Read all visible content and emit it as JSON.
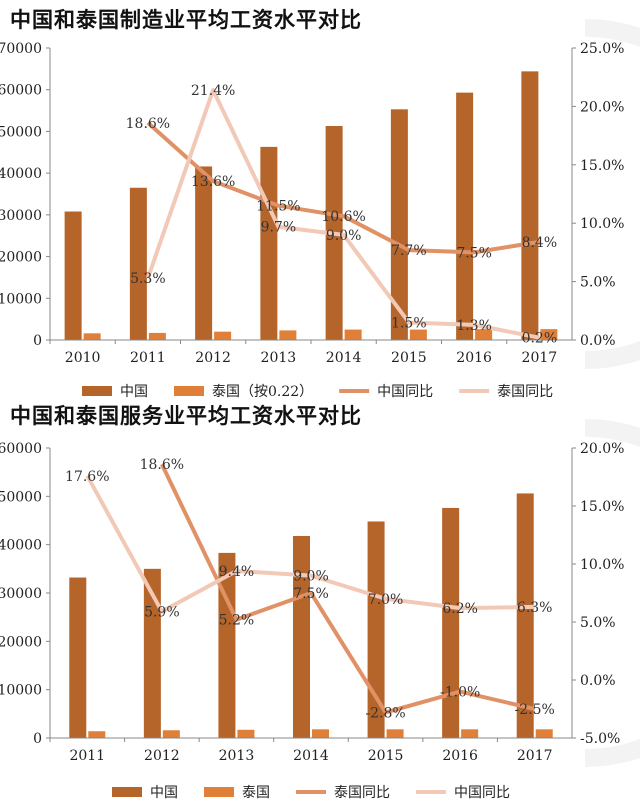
{
  "chart_data": [
    {
      "type": "bar",
      "title": "中国和泰国制造业平均工资水平对比",
      "categories": [
        "2010",
        "2011",
        "2012",
        "2013",
        "2014",
        "2015",
        "2016",
        "2017"
      ],
      "y_left": {
        "min": 0,
        "max": 70000,
        "ticks": [
          "0",
          "10000",
          "20000",
          "30000",
          "40000",
          "50000",
          "60000",
          "70000"
        ]
      },
      "y_right": {
        "min": 0,
        "max": 25,
        "ticks": [
          "0.0%",
          "5.0%",
          "10.0%",
          "15.0%",
          "20.0%",
          "25.0%"
        ]
      },
      "series": [
        {
          "name": "中国",
          "kind": "bar",
          "axis": "left",
          "color": "#b5652a",
          "values": [
            30800,
            36500,
            41600,
            46300,
            51300,
            55300,
            59300,
            64400
          ]
        },
        {
          "name": "泰国（按0.22）",
          "kind": "bar",
          "axis": "left",
          "color": "#e07f38",
          "values": [
            1600,
            1700,
            2000,
            2300,
            2500,
            2500,
            2600,
            2600
          ]
        },
        {
          "name": "中国同比",
          "kind": "line",
          "axis": "right",
          "color": "#e09166",
          "values": [
            null,
            18.6,
            13.6,
            11.5,
            10.6,
            7.7,
            7.5,
            8.4
          ],
          "labels": [
            "",
            "18.6%",
            "13.6%",
            "11.5%",
            "10.6%",
            "7.7%",
            "7.5%",
            "8.4%"
          ]
        },
        {
          "name": "泰国同比",
          "kind": "line",
          "axis": "right",
          "color": "#f2c8b6",
          "values": [
            null,
            5.3,
            21.4,
            9.7,
            9.0,
            1.5,
            1.3,
            0.2
          ],
          "labels": [
            "",
            "5.3%",
            "21.4%",
            "9.7%",
            "9.0%",
            "1.5%",
            "1.3%",
            "0.2%"
          ]
        }
      ],
      "legend": [
        "中国",
        "泰国（按0.22）",
        "中国同比",
        "泰国同比"
      ],
      "legend_position": "bottom"
    },
    {
      "type": "bar",
      "title": "中国和泰国服务业平均工资水平对比",
      "categories": [
        "2011",
        "2012",
        "2013",
        "2014",
        "2015",
        "2016",
        "2017"
      ],
      "y_left": {
        "min": 0,
        "max": 60000,
        "ticks": [
          "0",
          "10000",
          "20000",
          "30000",
          "40000",
          "50000",
          "60000"
        ]
      },
      "y_right": {
        "min": -5,
        "max": 20,
        "ticks": [
          "-5.0%",
          "0.0%",
          "5.0%",
          "10.0%",
          "15.0%",
          "20.0%"
        ]
      },
      "series": [
        {
          "name": "中国",
          "kind": "bar",
          "axis": "left",
          "color": "#b5652a",
          "values": [
            33200,
            35000,
            38300,
            41800,
            44800,
            47600,
            50600
          ]
        },
        {
          "name": "泰国",
          "kind": "bar",
          "axis": "left",
          "color": "#e07f38",
          "values": [
            1400,
            1600,
            1700,
            1800,
            1800,
            1800,
            1800
          ]
        },
        {
          "name": "泰国同比",
          "kind": "line",
          "axis": "right",
          "color": "#e09166",
          "values": [
            null,
            18.6,
            5.2,
            7.5,
            -2.8,
            -1.0,
            -2.5
          ],
          "labels": [
            "",
            "18.6%",
            "5.2%",
            "7.5%",
            "-2.8%",
            "-1.0%",
            "-2.5%"
          ]
        },
        {
          "name": "中国同比",
          "kind": "line",
          "axis": "right",
          "color": "#f2c8b6",
          "values": [
            17.6,
            5.9,
            9.4,
            9.0,
            7.0,
            6.2,
            6.3
          ],
          "labels": [
            "17.6%",
            "5.9%",
            "9.4%",
            "9.0%",
            "7.0%",
            "6.2%",
            "6.3%"
          ]
        }
      ],
      "legend": [
        "中国",
        "泰国",
        "泰国同比",
        "中国同比"
      ],
      "legend_position": "bottom"
    }
  ]
}
